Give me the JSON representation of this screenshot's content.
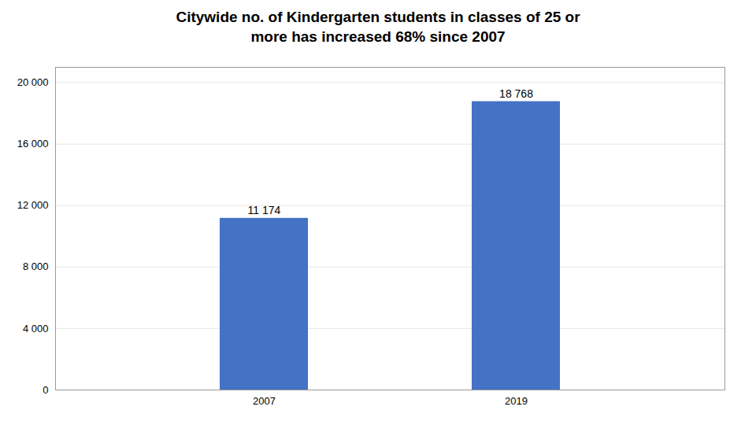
{
  "chart_data": {
    "type": "bar",
    "title": "Citywide no. of Kindergarten students in classes of 25 or\nmore has increased 68% since 2007",
    "categories": [
      "2007",
      "2019"
    ],
    "values": [
      11174,
      18768
    ],
    "value_labels": [
      "11 174",
      "18 768"
    ],
    "data_labels": true,
    "color": "#4472C4",
    "ylim": [
      0,
      21000
    ],
    "yticks": [
      0,
      {
        "value": 4000,
        "label": "4 000"
      },
      {
        "value": 8000,
        "label": "8 000"
      },
      {
        "value": 12000,
        "label": "12 000"
      },
      {
        "value": 16000,
        "label": "16 000"
      },
      {
        "value": 20000,
        "label": "20 000"
      }
    ],
    "grid": true
  }
}
